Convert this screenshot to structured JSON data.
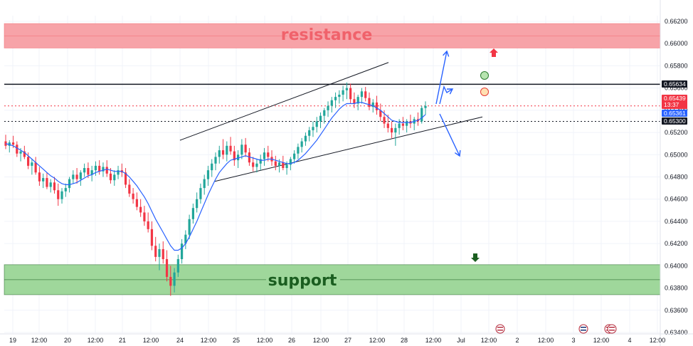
{
  "chart_data": {
    "type": "candlestick",
    "symbol_quote_scale": "price",
    "y_ticks": [
      "0.66200",
      "0.66000",
      "0.65800",
      "0.65600",
      "0.65400",
      "0.65200",
      "0.65000",
      "0.64800",
      "0.64600",
      "0.64400",
      "0.64200",
      "0.64000",
      "0.63800",
      "0.63600",
      "0.63400"
    ],
    "ylim": [
      0.6338,
      0.6627
    ],
    "x_ticks": [
      "19",
      "12:00",
      "20",
      "12:00",
      "21",
      "12:00",
      "24",
      "12:00",
      "25",
      "12:00",
      "26",
      "12:00",
      "27",
      "12:00",
      "28",
      "12:00",
      "Jul",
      "12:00",
      "2",
      "12:00",
      "3",
      "12:00",
      "4",
      "12:00"
    ],
    "price_labels": [
      {
        "value": "0.65634",
        "sub": "",
        "color": "#131722",
        "text_color": "#ffffff"
      },
      {
        "value": "0.65439",
        "sub": "13:37",
        "color": "#f23645",
        "text_color": "#ffffff"
      },
      {
        "value": "0.65361",
        "sub": "",
        "color": "#2962ff",
        "text_color": "#ffffff"
      },
      {
        "value": "0.65300",
        "sub": "",
        "color": "#131722",
        "text_color": "#ffffff"
      }
    ],
    "zones": [
      {
        "name": "resistance",
        "low": 0.6596,
        "high": 0.6618,
        "color": "#f7a3a8",
        "text_color": "#f0626b"
      },
      {
        "name": "support",
        "low": 0.6374,
        "high": 0.6401,
        "color": "#9fd79b",
        "text_color": "#1b5e20"
      }
    ],
    "horizontal_lines": [
      {
        "value": 0.65634,
        "style": "solid",
        "color": "#131722"
      },
      {
        "value": 0.653,
        "style": "dotted",
        "color": "#131722"
      },
      {
        "value": 0.65439,
        "style": "dotted",
        "color": "#f23645"
      }
    ],
    "channel": {
      "upper": {
        "x": [
          0.0,
          0.0
        ],
        "y": [
          0.6513,
          0.6583
        ]
      },
      "lower": {
        "x": [
          0.0,
          0.0
        ],
        "y": [
          0.6476,
          0.6534
        ]
      }
    },
    "series_up_color": "#22a69a",
    "series_down_color": "#f23645",
    "ma_color": "#2962ff",
    "candles": [
      [
        0.6512,
        0.6518,
        0.6505,
        0.6508
      ],
      [
        0.6508,
        0.6513,
        0.6502,
        0.6511
      ],
      [
        0.6511,
        0.6517,
        0.6506,
        0.6509
      ],
      [
        0.6509,
        0.6512,
        0.6498,
        0.6501
      ],
      [
        0.6501,
        0.6506,
        0.6494,
        0.6503
      ],
      [
        0.6503,
        0.6508,
        0.6496,
        0.6498
      ],
      [
        0.6498,
        0.6502,
        0.6487,
        0.649
      ],
      [
        0.649,
        0.6496,
        0.6482,
        0.6493
      ],
      [
        0.6493,
        0.6498,
        0.6482,
        0.6484
      ],
      [
        0.6484,
        0.6489,
        0.6472,
        0.6476
      ],
      [
        0.6476,
        0.6483,
        0.647,
        0.6479
      ],
      [
        0.6479,
        0.6484,
        0.6469,
        0.6471
      ],
      [
        0.6471,
        0.6478,
        0.6466,
        0.6475
      ],
      [
        0.6475,
        0.648,
        0.6465,
        0.6468
      ],
      [
        0.6468,
        0.6474,
        0.6454,
        0.646
      ],
      [
        0.646,
        0.647,
        0.6456,
        0.6467
      ],
      [
        0.6467,
        0.6474,
        0.6462,
        0.647
      ],
      [
        0.647,
        0.648,
        0.6466,
        0.6478
      ],
      [
        0.6478,
        0.6486,
        0.6474,
        0.6482
      ],
      [
        0.6482,
        0.6488,
        0.6474,
        0.6478
      ],
      [
        0.6478,
        0.6486,
        0.6472,
        0.6484
      ],
      [
        0.6484,
        0.6492,
        0.648,
        0.6488
      ],
      [
        0.6488,
        0.6493,
        0.6479,
        0.6482
      ],
      [
        0.6482,
        0.649,
        0.6476,
        0.6486
      ],
      [
        0.6486,
        0.6494,
        0.6481,
        0.649
      ],
      [
        0.649,
        0.6495,
        0.6482,
        0.6485
      ],
      [
        0.6485,
        0.6493,
        0.648,
        0.6489
      ],
      [
        0.6489,
        0.6495,
        0.648,
        0.6483
      ],
      [
        0.6483,
        0.6488,
        0.6474,
        0.6477
      ],
      [
        0.6477,
        0.6486,
        0.6472,
        0.6482
      ],
      [
        0.6482,
        0.649,
        0.6478,
        0.6486
      ],
      [
        0.6486,
        0.6492,
        0.648,
        0.6484
      ],
      [
        0.6484,
        0.6488,
        0.647,
        0.6473
      ],
      [
        0.6473,
        0.6478,
        0.6462,
        0.6465
      ],
      [
        0.6465,
        0.647,
        0.6456,
        0.646
      ],
      [
        0.646,
        0.6466,
        0.645,
        0.6453
      ],
      [
        0.6453,
        0.646,
        0.6444,
        0.6448
      ],
      [
        0.6448,
        0.6454,
        0.6436,
        0.644
      ],
      [
        0.644,
        0.6448,
        0.643,
        0.6433
      ],
      [
        0.6433,
        0.644,
        0.6414,
        0.6418
      ],
      [
        0.6418,
        0.6426,
        0.6404,
        0.6408
      ],
      [
        0.6408,
        0.642,
        0.6396,
        0.6415
      ],
      [
        0.6415,
        0.6422,
        0.6402,
        0.6406
      ],
      [
        0.6406,
        0.6414,
        0.6386,
        0.639
      ],
      [
        0.639,
        0.64,
        0.6373,
        0.6382
      ],
      [
        0.6382,
        0.6398,
        0.6376,
        0.6394
      ],
      [
        0.6394,
        0.641,
        0.639,
        0.6406
      ],
      [
        0.6406,
        0.6424,
        0.6402,
        0.642
      ],
      [
        0.642,
        0.6432,
        0.6415,
        0.6428
      ],
      [
        0.6428,
        0.6446,
        0.6424,
        0.6442
      ],
      [
        0.6442,
        0.6456,
        0.6438,
        0.6452
      ],
      [
        0.6452,
        0.6466,
        0.6448,
        0.646
      ],
      [
        0.646,
        0.6474,
        0.6456,
        0.647
      ],
      [
        0.647,
        0.6482,
        0.6464,
        0.6478
      ],
      [
        0.6478,
        0.649,
        0.6472,
        0.6486
      ],
      [
        0.6486,
        0.6496,
        0.648,
        0.6492
      ],
      [
        0.6492,
        0.6502,
        0.6486,
        0.6498
      ],
      [
        0.6498,
        0.6508,
        0.6492,
        0.6504
      ],
      [
        0.6504,
        0.6514,
        0.6496,
        0.65
      ],
      [
        0.65,
        0.6512,
        0.6494,
        0.6508
      ],
      [
        0.6508,
        0.6516,
        0.65,
        0.6503
      ],
      [
        0.6503,
        0.6508,
        0.649,
        0.6495
      ],
      [
        0.6495,
        0.6504,
        0.6488,
        0.65
      ],
      [
        0.65,
        0.6514,
        0.6496,
        0.6509
      ],
      [
        0.6509,
        0.6515,
        0.6498,
        0.6502
      ],
      [
        0.6502,
        0.6506,
        0.649,
        0.6493
      ],
      [
        0.6493,
        0.6498,
        0.6485,
        0.6489
      ],
      [
        0.6489,
        0.6496,
        0.6484,
        0.6492
      ],
      [
        0.6492,
        0.65,
        0.6486,
        0.6496
      ],
      [
        0.6496,
        0.6506,
        0.649,
        0.6502
      ],
      [
        0.6502,
        0.6508,
        0.6494,
        0.6498
      ],
      [
        0.6498,
        0.6504,
        0.649,
        0.6494
      ],
      [
        0.6494,
        0.6499,
        0.6486,
        0.649
      ],
      [
        0.649,
        0.6496,
        0.6484,
        0.6493
      ],
      [
        0.6493,
        0.6499,
        0.6486,
        0.6488
      ],
      [
        0.6488,
        0.6494,
        0.6482,
        0.6491
      ],
      [
        0.6491,
        0.6498,
        0.6486,
        0.6496
      ],
      [
        0.6496,
        0.6504,
        0.6492,
        0.6501
      ],
      [
        0.6501,
        0.651,
        0.6496,
        0.6507
      ],
      [
        0.6507,
        0.6515,
        0.6502,
        0.6512
      ],
      [
        0.6512,
        0.652,
        0.6508,
        0.6517
      ],
      [
        0.6517,
        0.6525,
        0.6512,
        0.6522
      ],
      [
        0.6522,
        0.653,
        0.6516,
        0.6525
      ],
      [
        0.6525,
        0.6534,
        0.652,
        0.653
      ],
      [
        0.653,
        0.6538,
        0.6524,
        0.6535
      ],
      [
        0.6535,
        0.6542,
        0.6528,
        0.654
      ],
      [
        0.654,
        0.6548,
        0.6534,
        0.6544
      ],
      [
        0.6544,
        0.6552,
        0.6538,
        0.6549
      ],
      [
        0.6549,
        0.6556,
        0.6542,
        0.6552
      ],
      [
        0.6552,
        0.6558,
        0.6546,
        0.6554
      ],
      [
        0.6554,
        0.6562,
        0.6548,
        0.6558
      ],
      [
        0.6558,
        0.6565,
        0.655,
        0.656
      ],
      [
        0.656,
        0.6564,
        0.6546,
        0.655
      ],
      [
        0.655,
        0.6556,
        0.6542,
        0.6546
      ],
      [
        0.6546,
        0.6554,
        0.654,
        0.6552
      ],
      [
        0.6552,
        0.656,
        0.6546,
        0.6557
      ],
      [
        0.6557,
        0.6561,
        0.6548,
        0.6551
      ],
      [
        0.6551,
        0.6556,
        0.654,
        0.6543
      ],
      [
        0.6543,
        0.655,
        0.6538,
        0.6547
      ],
      [
        0.6547,
        0.6553,
        0.6536,
        0.654
      ],
      [
        0.654,
        0.6546,
        0.653,
        0.6534
      ],
      [
        0.6534,
        0.654,
        0.6524,
        0.6528
      ],
      [
        0.6528,
        0.6536,
        0.652,
        0.6524
      ],
      [
        0.6524,
        0.653,
        0.6515,
        0.652
      ],
      [
        0.652,
        0.6528,
        0.6508,
        0.6524
      ],
      [
        0.6524,
        0.6532,
        0.6518,
        0.6528
      ],
      [
        0.6528,
        0.6534,
        0.6522,
        0.6526
      ],
      [
        0.6526,
        0.6532,
        0.652,
        0.653
      ],
      [
        0.653,
        0.6536,
        0.6524,
        0.6528
      ],
      [
        0.6528,
        0.6534,
        0.6522,
        0.6532
      ],
      [
        0.6532,
        0.6538,
        0.6526,
        0.653
      ],
      [
        0.653,
        0.6544,
        0.6528,
        0.6542
      ],
      [
        0.6542,
        0.6548,
        0.6536,
        0.65439
      ]
    ],
    "ma": [
      0.651,
      0.6509,
      0.6508,
      0.6506,
      0.6504,
      0.6502,
      0.6499,
      0.6496,
      0.6493,
      0.649,
      0.6487,
      0.6484,
      0.6481,
      0.6479,
      0.6476,
      0.6474,
      0.6473,
      0.6473,
      0.6474,
      0.6475,
      0.6477,
      0.6479,
      0.6481,
      0.6482,
      0.6484,
      0.6485,
      0.6486,
      0.6487,
      0.6486,
      0.6485,
      0.6485,
      0.6485,
      0.6483,
      0.648,
      0.6476,
      0.6472,
      0.6467,
      0.6462,
      0.6456,
      0.6449,
      0.6442,
      0.6436,
      0.643,
      0.6424,
      0.6418,
      0.6414,
      0.6414,
      0.6416,
      0.642,
      0.6426,
      0.6433,
      0.644,
      0.6448,
      0.6456,
      0.6464,
      0.6471,
      0.6478,
      0.6484,
      0.6488,
      0.6492,
      0.6495,
      0.6496,
      0.6497,
      0.6498,
      0.6499,
      0.6498,
      0.6497,
      0.6496,
      0.6495,
      0.6495,
      0.6496,
      0.6496,
      0.6495,
      0.6494,
      0.6493,
      0.6492,
      0.6492,
      0.6493,
      0.6495,
      0.6498,
      0.6501,
      0.6505,
      0.6509,
      0.6513,
      0.6518,
      0.6523,
      0.6528,
      0.6533,
      0.6537,
      0.6541,
      0.6544,
      0.6546,
      0.6546,
      0.6546,
      0.6547,
      0.6547,
      0.6546,
      0.6545,
      0.6544,
      0.6542,
      0.654,
      0.6537,
      0.6534,
      0.6531,
      0.653,
      0.6529,
      0.6529,
      0.6529,
      0.6529,
      0.653,
      0.6531,
      0.6533,
      0.65361
    ]
  },
  "annotations": {
    "resistance_label": "resistance",
    "support_label": "support"
  }
}
